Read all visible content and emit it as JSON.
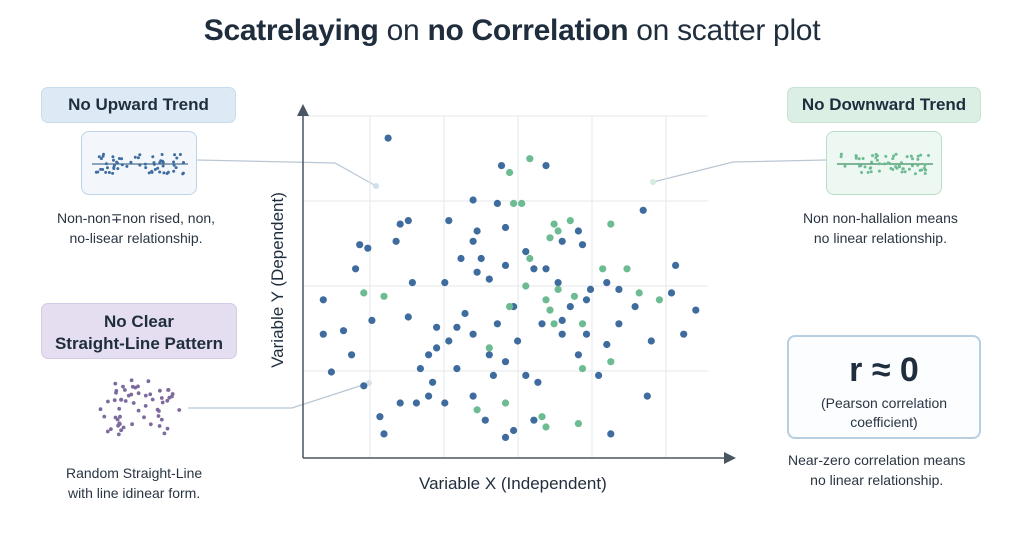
{
  "title": {
    "part1": "Scatrelaying",
    "part2": " on ",
    "part3": "no Correlation",
    "part4": " on scatter plot"
  },
  "left_top": {
    "pill": "No Upward Trend",
    "caption_line1": "Non-non∓non rised, non,",
    "caption_line2": "no-lisear relationship."
  },
  "left_bottom": {
    "pill_line1": "No Clear",
    "pill_line2": "Straight-Line Pattern",
    "caption_line1": "Random  Straight-Line",
    "caption_line2": "with line idinear form."
  },
  "right_top": {
    "pill": "No Downward Trend",
    "caption_line1": "Non non-hallalion means",
    "caption_line2": "no linear relationship."
  },
  "right_bottom": {
    "r_value": "r ≈ 0",
    "r_desc_line1": "(Pearson correlation",
    "r_desc_line2": "coefficient)",
    "caption_line1": "Near-zero correlation means",
    "caption_line2": "no linear relationship."
  },
  "axes": {
    "x_label": "Variable X (Independent)",
    "y_label": "Variable Y (Dependent)"
  },
  "colors": {
    "blue_point": "#3f6c9e",
    "green_point": "#6dbb93",
    "purple_point": "#7d6a9e",
    "grid": "#e4e7eb",
    "axis": "#4a5562"
  },
  "chart_data": {
    "type": "scatter",
    "xlabel": "Variable X (Independent)",
    "ylabel": "Variable Y (Dependent)",
    "xlim": [
      0,
      10
    ],
    "ylim": [
      0,
      10
    ],
    "grid": true,
    "series": [
      {
        "color": "#3f6c9e",
        "points": [
          [
            2.1,
            9.3
          ],
          [
            2.4,
            6.8
          ],
          [
            2.6,
            6.9
          ],
          [
            2.3,
            6.3
          ],
          [
            3.6,
            6.9
          ],
          [
            4.3,
            6.6
          ],
          [
            4.2,
            6.3
          ],
          [
            3.9,
            5.8
          ],
          [
            4.4,
            5.8
          ],
          [
            4.2,
            7.5
          ],
          [
            4.8,
            7.4
          ],
          [
            5.0,
            6.7
          ],
          [
            5.5,
            6.0
          ],
          [
            4.3,
            5.4
          ],
          [
            4.6,
            5.2
          ],
          [
            5.0,
            5.6
          ],
          [
            3.5,
            5.1
          ],
          [
            4.0,
            4.2
          ],
          [
            4.8,
            3.9
          ],
          [
            4.2,
            3.6
          ],
          [
            4.6,
            3.0
          ],
          [
            5.3,
            3.4
          ],
          [
            5.0,
            2.8
          ],
          [
            3.8,
            3.8
          ],
          [
            3.6,
            3.4
          ],
          [
            3.3,
            3.8
          ],
          [
            3.1,
            3.0
          ],
          [
            2.9,
            2.6
          ],
          [
            3.2,
            2.2
          ],
          [
            3.5,
            1.6
          ],
          [
            4.2,
            1.8
          ],
          [
            4.7,
            2.4
          ],
          [
            5.5,
            2.4
          ],
          [
            5.2,
            4.4
          ],
          [
            5.7,
            5.5
          ],
          [
            5.9,
            3.9
          ],
          [
            6.4,
            3.6
          ],
          [
            6.6,
            4.4
          ],
          [
            7.0,
            3.6
          ],
          [
            6.8,
            3.0
          ],
          [
            7.3,
            2.4
          ],
          [
            7.5,
            3.3
          ],
          [
            7.8,
            3.9
          ],
          [
            8.2,
            4.4
          ],
          [
            8.6,
            3.4
          ],
          [
            9.1,
            4.8
          ],
          [
            9.4,
            3.6
          ],
          [
            9.7,
            4.3
          ],
          [
            9.2,
            5.6
          ],
          [
            8.4,
            7.2
          ],
          [
            7.5,
            5.1
          ],
          [
            7.0,
            4.6
          ],
          [
            6.4,
            4.0
          ],
          [
            5.8,
            2.2
          ],
          [
            6.8,
            6.6
          ],
          [
            6.9,
            6.2
          ],
          [
            6.0,
            5.5
          ],
          [
            2.7,
            5.1
          ],
          [
            0.5,
            4.6
          ],
          [
            0.5,
            3.6
          ],
          [
            0.7,
            2.5
          ],
          [
            1.2,
            3.0
          ],
          [
            1.5,
            2.1
          ],
          [
            1.9,
            1.2
          ],
          [
            1.4,
            6.2
          ],
          [
            1.6,
            6.1
          ],
          [
            1.3,
            5.5
          ],
          [
            2.4,
            1.6
          ],
          [
            3.1,
            1.8
          ],
          [
            4.5,
            1.1
          ],
          [
            5.0,
            0.6
          ],
          [
            2.8,
            1.6
          ],
          [
            5.7,
            1.1
          ],
          [
            5.2,
            0.8
          ],
          [
            7.6,
            0.7
          ],
          [
            8.5,
            1.8
          ],
          [
            4.9,
            8.5
          ],
          [
            6.0,
            8.5
          ],
          [
            2.0,
            0.7
          ],
          [
            6.4,
            6.3
          ],
          [
            7.1,
            4.9
          ],
          [
            7.8,
            4.9
          ],
          [
            3.3,
            3.2
          ],
          [
            3.8,
            2.6
          ],
          [
            2.6,
            4.1
          ],
          [
            1.7,
            4.0
          ],
          [
            1.0,
            3.7
          ],
          [
            6.3,
            5.1
          ]
        ]
      },
      {
        "color": "#6dbb93",
        "points": [
          [
            5.1,
            8.3
          ],
          [
            5.6,
            8.7
          ],
          [
            5.2,
            7.4
          ],
          [
            5.4,
            7.4
          ],
          [
            6.2,
            6.8
          ],
          [
            6.3,
            6.6
          ],
          [
            6.6,
            6.9
          ],
          [
            6.1,
            6.4
          ],
          [
            5.6,
            5.8
          ],
          [
            5.5,
            5.0
          ],
          [
            6.0,
            4.6
          ],
          [
            6.3,
            4.9
          ],
          [
            6.1,
            4.3
          ],
          [
            5.1,
            4.4
          ],
          [
            6.7,
            4.7
          ],
          [
            7.4,
            5.5
          ],
          [
            7.6,
            6.8
          ],
          [
            8.0,
            5.5
          ],
          [
            8.3,
            4.8
          ],
          [
            8.8,
            4.6
          ],
          [
            6.2,
            3.9
          ],
          [
            6.9,
            3.9
          ],
          [
            6.9,
            2.6
          ],
          [
            7.6,
            2.8
          ],
          [
            5.9,
            1.2
          ],
          [
            6.0,
            0.9
          ],
          [
            5.0,
            1.6
          ],
          [
            6.8,
            1.0
          ],
          [
            1.5,
            4.8
          ],
          [
            2.0,
            4.7
          ],
          [
            4.6,
            3.2
          ],
          [
            4.3,
            1.4
          ]
        ]
      }
    ]
  }
}
